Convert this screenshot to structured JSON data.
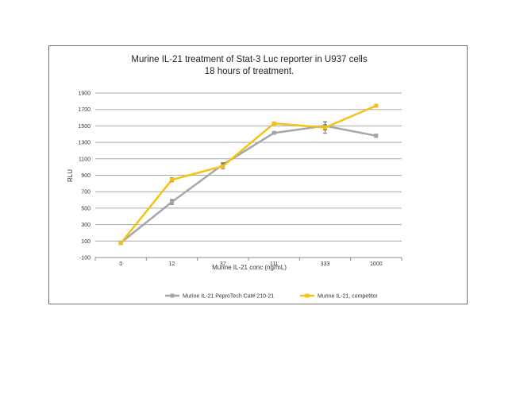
{
  "chart_data": {
    "type": "line",
    "title_lines": [
      "Murine IL-21 treatment of Stat-3 Luc reporter in U937 cells",
      "18 hours of treatment."
    ],
    "xlabel": "Murine IL-21 conc (ng/mL)",
    "ylabel": "RLU",
    "categories": [
      "0",
      "12",
      "37",
      "111",
      "333",
      "1000"
    ],
    "y_ticks": [
      -100,
      100,
      300,
      500,
      700,
      900,
      1100,
      1300,
      1500,
      1700,
      1900
    ],
    "ylim": [
      -100,
      1900
    ],
    "grid": true,
    "legend_position": "bottom",
    "series": [
      {
        "name": "Murine IL-21 PeproTech Cat# 210-21",
        "color": "#a6a6a6",
        "values": [
          80,
          575,
          1030,
          1415,
          1500,
          1380
        ],
        "errors": [
          15,
          30,
          25,
          15,
          50,
          20
        ]
      },
      {
        "name": "Murine IL-21, competitor",
        "color": "#f2c314",
        "values": [
          75,
          845,
          1010,
          1530,
          1480,
          1745
        ],
        "errors": [
          15,
          25,
          30,
          15,
          70,
          15
        ]
      }
    ]
  }
}
